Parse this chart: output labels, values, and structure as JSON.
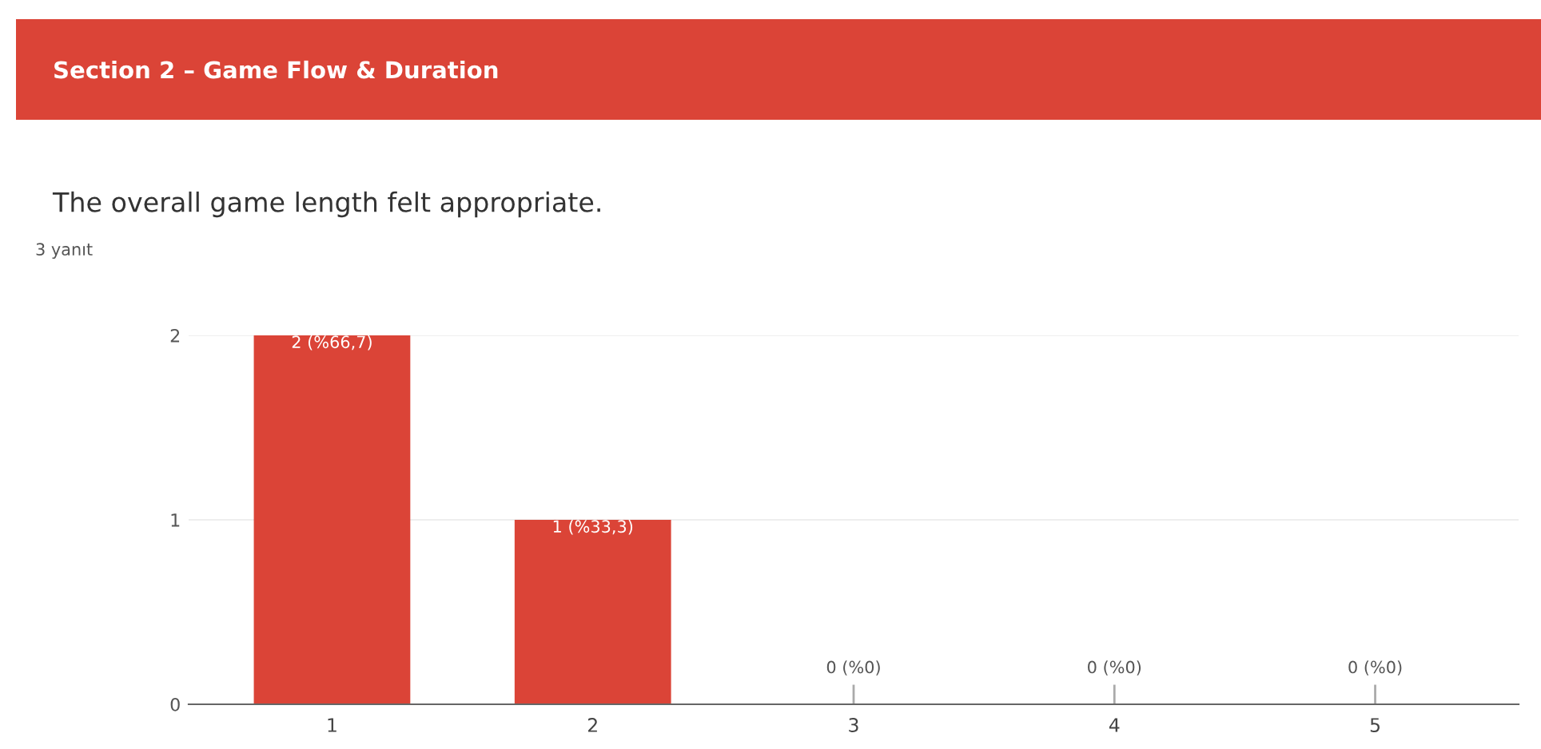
{
  "chart_data": {
    "type": "bar",
    "title": "Section 2 – Game Flow & Duration",
    "subtitle": "The overall game length felt appropriate.",
    "annotations": [
      "3 yanıt"
    ],
    "categories": [
      "1",
      "2",
      "3",
      "4",
      "5"
    ],
    "values": [
      2,
      1,
      0,
      0,
      0
    ],
    "value_labels": [
      "2 (%66,7)",
      "1 (%33,3)",
      "0 (%0)",
      "0 (%0)",
      "0 (%0)"
    ],
    "color": "#db4437",
    "ylim": [
      0,
      2
    ],
    "yticks": [
      0,
      1,
      2
    ],
    "grid": "y"
  }
}
